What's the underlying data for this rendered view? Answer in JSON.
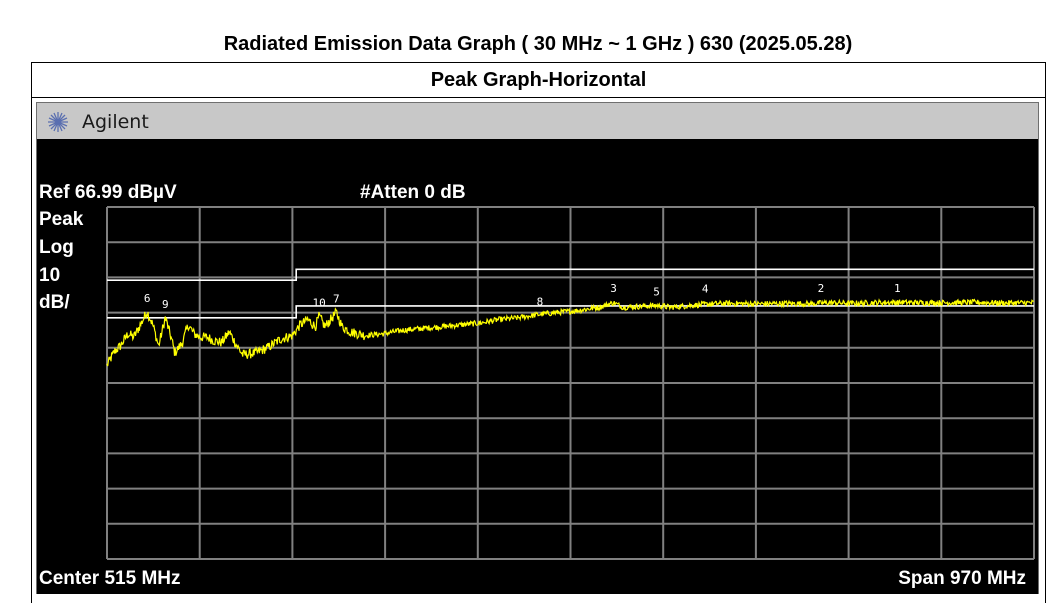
{
  "page": {
    "title": "Radiated Emission Data Graph ( 30 MHz ~ 1 GHz ) 630 (2025.05.28)",
    "subtitle": "Peak Graph-Horizontal"
  },
  "analyzer": {
    "brand": "Agilent",
    "ref_level": "Ref 66.99 dBµV",
    "atten": "#Atten 0 dB",
    "mode_lines": [
      "Peak",
      "Log",
      "10",
      "dB/"
    ],
    "center": "Center 515 MHz",
    "span": "Span 970 MHz",
    "colors": {
      "background": "#000000",
      "grid": "#808080",
      "trace": "#ffff00",
      "limit": "#ffffff"
    }
  },
  "chart_data": {
    "type": "line",
    "xlim": [
      30,
      1000
    ],
    "ylim": [
      -33.01,
      66.99
    ],
    "x_unit": "MHz",
    "y_unit": "dBµV",
    "grid": true,
    "limit_lines": [
      {
        "points": [
          [
            30,
            46.2
          ],
          [
            228,
            46.2
          ],
          [
            228,
            49.3
          ],
          [
            1000,
            49.3
          ]
        ]
      },
      {
        "points": [
          [
            30,
            35.5
          ],
          [
            228,
            35.5
          ],
          [
            228,
            38.9
          ],
          [
            1000,
            38.9
          ]
        ]
      }
    ],
    "series": [
      {
        "values": [
          [
            30,
            22.0
          ],
          [
            38,
            26.0
          ],
          [
            44,
            27.5
          ],
          [
            52,
            31.0
          ],
          [
            58,
            30.0
          ],
          [
            64,
            33.0
          ],
          [
            72,
            37.3
          ],
          [
            78,
            33.5
          ],
          [
            84,
            27.5
          ],
          [
            91,
            35.5
          ],
          [
            97,
            30.0
          ],
          [
            101,
            25.5
          ],
          [
            109,
            28.5
          ],
          [
            115,
            33.5
          ],
          [
            121,
            31.0
          ],
          [
            128,
            30.0
          ],
          [
            135,
            30.0
          ],
          [
            142,
            29.0
          ],
          [
            150,
            28.5
          ],
          [
            158,
            31.5
          ],
          [
            165,
            28.0
          ],
          [
            172,
            25.0
          ],
          [
            185,
            25.5
          ],
          [
            198,
            27.0
          ],
          [
            212,
            29.5
          ],
          [
            224,
            30.5
          ],
          [
            232,
            33.5
          ],
          [
            240,
            35.0
          ],
          [
            248,
            33.0
          ],
          [
            252,
            36.0
          ],
          [
            258,
            33.0
          ],
          [
            264,
            35.0
          ],
          [
            270,
            37.0
          ],
          [
            276,
            33.0
          ],
          [
            285,
            31.5
          ],
          [
            300,
            30.5
          ],
          [
            320,
            31.0
          ],
          [
            340,
            32.0
          ],
          [
            360,
            32.5
          ],
          [
            380,
            33.0
          ],
          [
            400,
            33.5
          ],
          [
            420,
            34.0
          ],
          [
            440,
            35.0
          ],
          [
            460,
            35.5
          ],
          [
            483,
            36.5
          ],
          [
            500,
            37.0
          ],
          [
            520,
            37.5
          ],
          [
            545,
            38.5
          ],
          [
            560,
            39.8
          ],
          [
            570,
            38.5
          ],
          [
            590,
            38.8
          ],
          [
            605,
            39.0
          ],
          [
            620,
            38.5
          ],
          [
            640,
            39.0
          ],
          [
            665,
            39.5
          ],
          [
            680,
            39.6
          ],
          [
            700,
            39.5
          ],
          [
            720,
            39.5
          ],
          [
            740,
            39.6
          ],
          [
            765,
            39.5
          ],
          [
            785,
            39.8
          ],
          [
            810,
            39.6
          ],
          [
            830,
            39.8
          ],
          [
            860,
            39.9
          ],
          [
            880,
            39.8
          ],
          [
            910,
            39.8
          ],
          [
            940,
            39.9
          ],
          [
            970,
            39.7
          ],
          [
            1000,
            39.8
          ]
        ]
      }
    ],
    "markers": [
      {
        "label": "1",
        "x": 857,
        "y": 40.3
      },
      {
        "label": "2",
        "x": 777,
        "y": 40.3
      },
      {
        "label": "3",
        "x": 560,
        "y": 40.3
      },
      {
        "label": "4",
        "x": 656,
        "y": 40.1
      },
      {
        "label": "5",
        "x": 605,
        "y": 39.3
      },
      {
        "label": "6",
        "x": 72,
        "y": 37.5
      },
      {
        "label": "7",
        "x": 270,
        "y": 37.3
      },
      {
        "label": "8",
        "x": 483,
        "y": 36.5
      },
      {
        "label": "9",
        "x": 91,
        "y": 35.8
      },
      {
        "label": "10",
        "x": 252,
        "y": 36.2
      }
    ]
  }
}
